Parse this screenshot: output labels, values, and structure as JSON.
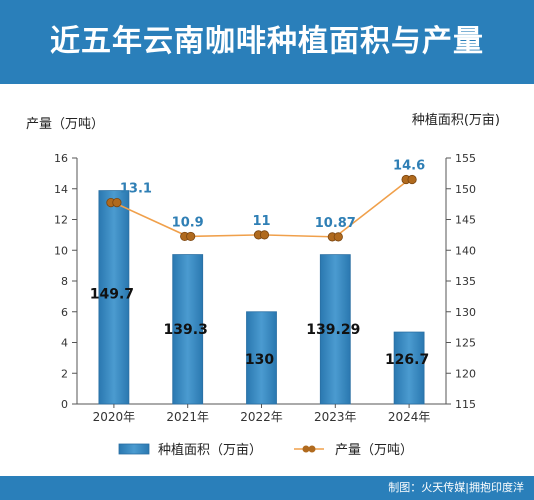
{
  "header": {
    "title": "近五年云南咖啡种植面积与产量"
  },
  "footer": {
    "credit": "制图：火天传媒|拥抱印度洋"
  },
  "colors": {
    "banner": "#2a7fba",
    "bar": "#3f8fc6",
    "line": "#f0a04b",
    "marker": "#b06a1e",
    "line_label": "#2f7fb5"
  },
  "chart_data": {
    "type": "bar",
    "categories": [
      "2020年",
      "2021年",
      "2022年",
      "2023年",
      "2024年"
    ],
    "left_axis": {
      "label": "产量（万吨）",
      "ylim": [
        0,
        16
      ],
      "ticks": [
        "0",
        "2",
        "4",
        "6",
        "8",
        "10",
        "12",
        "14",
        "16"
      ]
    },
    "right_axis": {
      "label": "种植面积(万亩)",
      "ylim": [
        115,
        155
      ],
      "ticks": [
        "115",
        "120",
        "125",
        "130",
        "135",
        "140",
        "145",
        "150",
        "155"
      ]
    },
    "series": [
      {
        "name": "种植面积（万亩）",
        "type": "bar",
        "axis": "right",
        "values": [
          149.7,
          139.3,
          130,
          139.29,
          126.7
        ],
        "labels": [
          "149.7",
          "139.3",
          "130",
          "139.29",
          "126.7"
        ]
      },
      {
        "name": "产量（万吨）",
        "type": "line",
        "axis": "left",
        "values": [
          13.1,
          10.9,
          11,
          10.87,
          14.6
        ],
        "labels": [
          "13.1",
          "10.9",
          "11",
          "10.87",
          "14.6"
        ]
      }
    ],
    "legend": {
      "position": "bottom"
    },
    "grid": false
  }
}
